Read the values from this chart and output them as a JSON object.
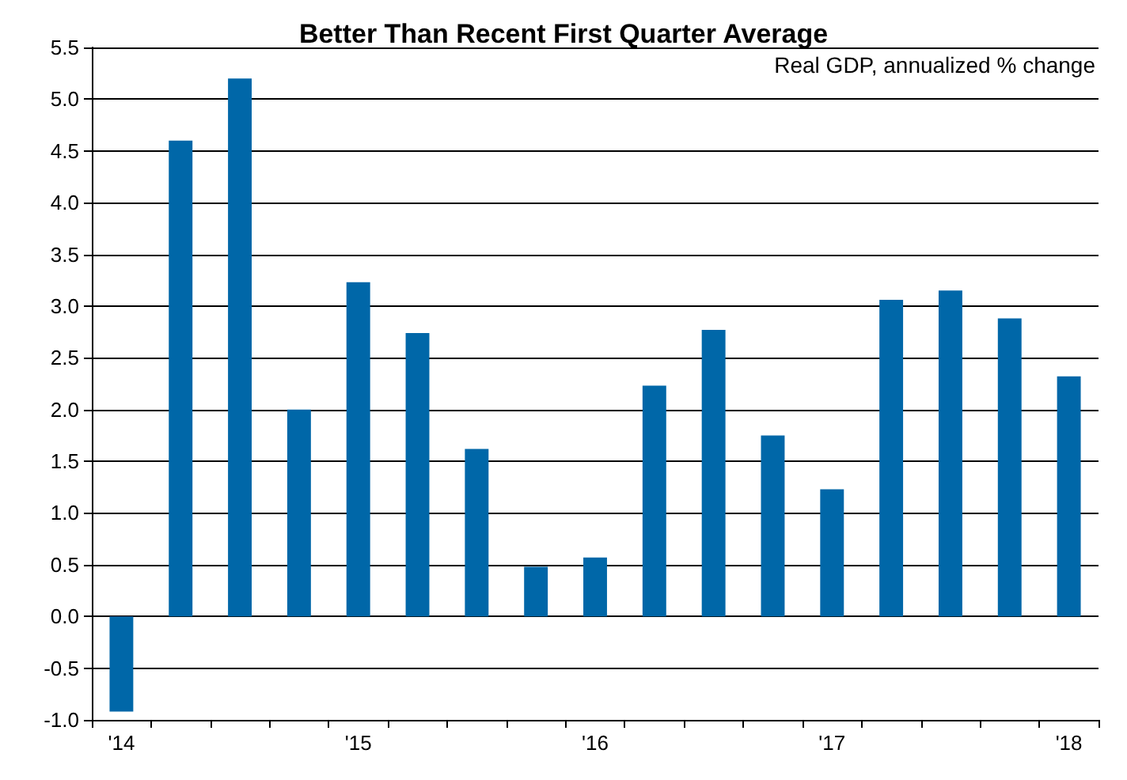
{
  "chart_data": {
    "type": "bar",
    "title": "Better Than Recent First Quarter Average",
    "annotations": [
      "Real GDP, annualized % change"
    ],
    "categories": [
      "'14",
      null,
      null,
      null,
      "'15",
      null,
      null,
      null,
      "'16",
      null,
      null,
      null,
      "'17",
      null,
      null,
      null,
      "'18"
    ],
    "values": [
      -0.92,
      4.6,
      5.2,
      2.0,
      3.23,
      2.74,
      1.62,
      0.48,
      0.57,
      2.23,
      2.77,
      1.75,
      1.23,
      3.06,
      3.15,
      2.88,
      2.32
    ],
    "color": "#0067a8",
    "ylim": [
      -1,
      5.5
    ],
    "yticks": [
      {
        "value": -1,
        "label": "-1.0"
      },
      {
        "value": -0.5,
        "label": "-0.5"
      },
      {
        "value": 0,
        "label": "0.0"
      },
      {
        "value": 0.5,
        "label": "0.5"
      },
      {
        "value": 1,
        "label": "1.0"
      },
      {
        "value": 1.5,
        "label": "1.5"
      },
      {
        "value": 2,
        "label": "2.0"
      },
      {
        "value": 2.5,
        "label": "2.5"
      },
      {
        "value": 3,
        "label": "3.0"
      },
      {
        "value": 3.5,
        "label": "3.5"
      },
      {
        "value": 4,
        "label": "4.0"
      },
      {
        "value": 4.5,
        "label": "4.5"
      },
      {
        "value": 5,
        "label": "5.0"
      },
      {
        "value": 5.5,
        "label": "5.5"
      }
    ],
    "grid": "y"
  }
}
